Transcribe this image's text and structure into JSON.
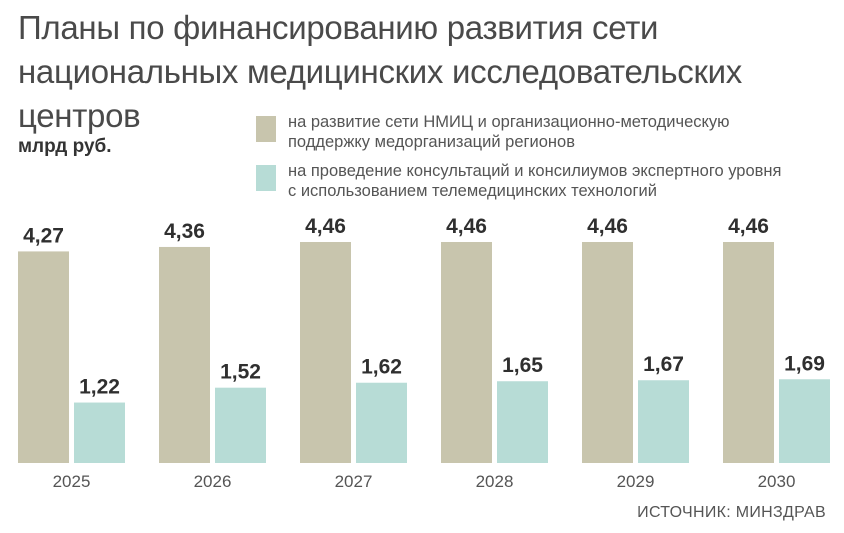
{
  "title": {
    "line1": "Планы по финансированию развития сети",
    "line2": "национальных медицинских исследовательских",
    "line3": "центров"
  },
  "unit": "млрд руб.",
  "legend": [
    {
      "label_line1": "на развитие сети НМИЦ и организационно-методическую",
      "label_line2": "поддержку медорганизаций регионов",
      "color": "#c8c5ad"
    },
    {
      "label_line1": "на проведение консультаций и консилиумов экспертного уровня",
      "label_line2": "с использованием телемедицинских технологий",
      "color": "#b7dcd6"
    }
  ],
  "source": "ИСТОЧНИК: МИНЗДРАВ",
  "chart_data": {
    "type": "bar",
    "categories": [
      "2025",
      "2026",
      "2027",
      "2028",
      "2029",
      "2030"
    ],
    "series": [
      {
        "name": "на развитие сети НМИЦ и организационно-методическую поддержку медорганизаций регионов",
        "values": [
          4.27,
          4.36,
          4.46,
          4.46,
          4.46,
          4.46
        ],
        "labels": [
          "4,27",
          "4,36",
          "4,46",
          "4,46",
          "4,46",
          "4,46"
        ],
        "color": "#c8c5ad"
      },
      {
        "name": "на проведение консультаций и консилиумов экспертного уровня с использованием телемедицинских технологий",
        "values": [
          1.22,
          1.52,
          1.62,
          1.65,
          1.67,
          1.69
        ],
        "labels": [
          "1,22",
          "1,52",
          "1,62",
          "1,65",
          "1,67",
          "1,69"
        ],
        "color": "#b7dcd6"
      }
    ],
    "ylim": [
      0,
      4.46
    ]
  }
}
